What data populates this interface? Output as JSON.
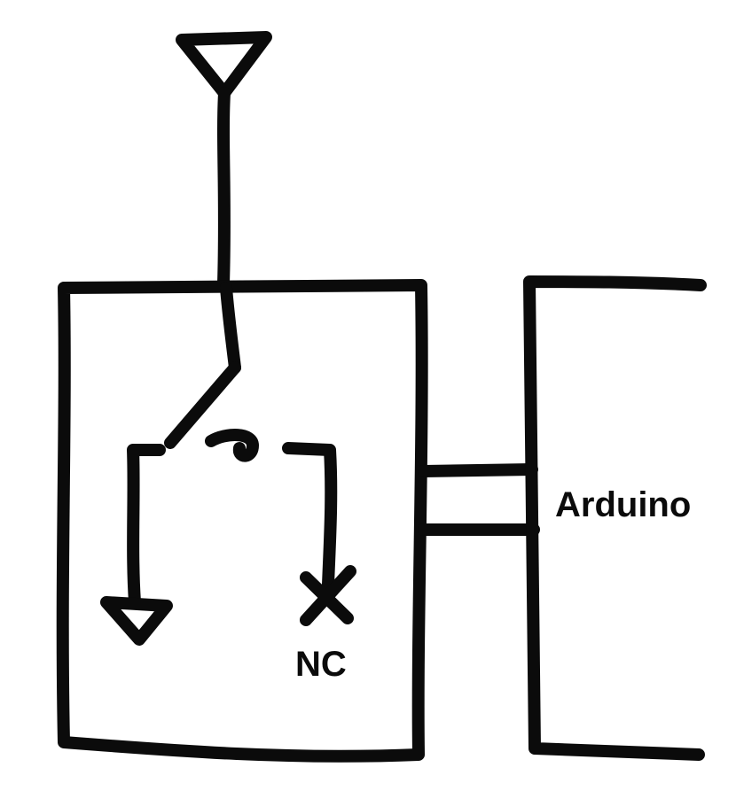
{
  "labels": {
    "arduino": "Arduino",
    "nc": "NC"
  },
  "colors": {
    "ink": "#0b0b0b",
    "background": "#ffffff"
  },
  "symbols": {
    "power_input": "downward-triangle-icon",
    "ground": "downward-triangle-icon",
    "not_connected": "x-mark-icon",
    "switch": "spdt-switch"
  }
}
